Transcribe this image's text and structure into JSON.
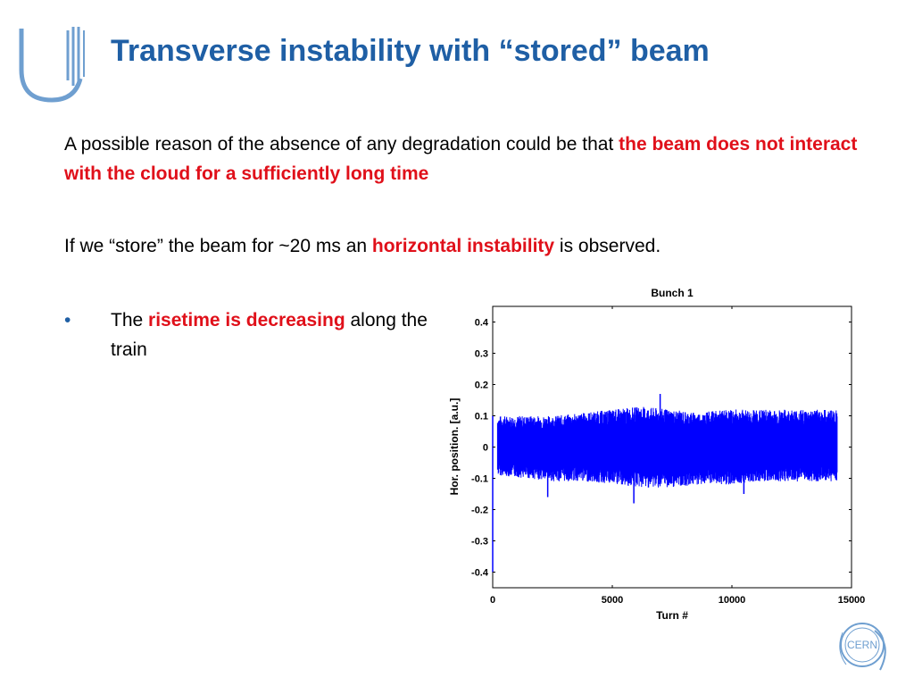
{
  "slide": {
    "title": "Transverse instability with “stored” beam",
    "paragraph1": {
      "text": "A possible reason of the absence of any degradation could be that ",
      "highlight": "the beam does not interact with the cloud for a sufficiently long time"
    },
    "paragraph2": {
      "text_before": "If we “store” the beam for ~20 ms an ",
      "highlight": "horizontal instability",
      "text_after": " is observed."
    },
    "bullet": {
      "marker": "•",
      "text_before": "The ",
      "highlight": "risetime is decreasing",
      "text_after": " along the train"
    },
    "logo_text": "CERN"
  },
  "colors": {
    "title": "#1f5fa5",
    "highlight": "#e0101a",
    "signal": "#0000ff",
    "logo": "#6f9fd0"
  },
  "chart_data": {
    "type": "line",
    "title": "Bunch 1",
    "xlabel": "Turn #",
    "ylabel": "Hor. position. [a.u.]",
    "xlim": [
      0,
      15000
    ],
    "ylim": [
      -0.45,
      0.45
    ],
    "xticks": [
      0,
      5000,
      10000,
      15000
    ],
    "yticks": [
      0.4,
      0.3,
      0.2,
      0.1,
      0,
      -0.1,
      -0.2,
      -0.3,
      -0.4
    ],
    "grid": false,
    "series": [
      {
        "points_x": [
          0,
          40,
          80,
          120,
          200,
          400,
          600,
          1000,
          2000,
          3000,
          4000,
          5000,
          6000,
          7000,
          8000,
          9000,
          10000,
          11000,
          12000,
          13000,
          14000,
          14400
        ],
        "points_y": [
          -0.4,
          0.12,
          -0.05,
          0.08,
          0.1,
          -0.11,
          0.1,
          -0.12,
          0.1,
          -0.13,
          0.11,
          -0.12,
          0.13,
          -0.14,
          0.13,
          -0.12,
          0.11,
          -0.11,
          0.12,
          -0.12,
          0.13,
          0.0
        ],
        "envelope_upper": [
          0.1,
          0.1,
          0.1,
          0.11,
          0.12,
          0.13,
          0.12,
          0.11,
          0.12,
          0.12,
          0.12,
          0.12,
          0.12
        ],
        "envelope_lower": [
          -0.09,
          -0.1,
          -0.11,
          -0.11,
          -0.12,
          -0.13,
          -0.13,
          -0.12,
          -0.12,
          -0.11,
          -0.11,
          -0.11,
          -0.11
        ],
        "envelope_x": [
          200,
          1400,
          2600,
          3800,
          5000,
          6200,
          7400,
          8600,
          9800,
          11000,
          12200,
          13400,
          14400
        ],
        "spikes": [
          {
            "x": 7000,
            "y": 0.17
          },
          {
            "x": 5900,
            "y": -0.18
          },
          {
            "x": 2300,
            "y": -0.16
          },
          {
            "x": 10500,
            "y": -0.15
          }
        ]
      }
    ]
  }
}
